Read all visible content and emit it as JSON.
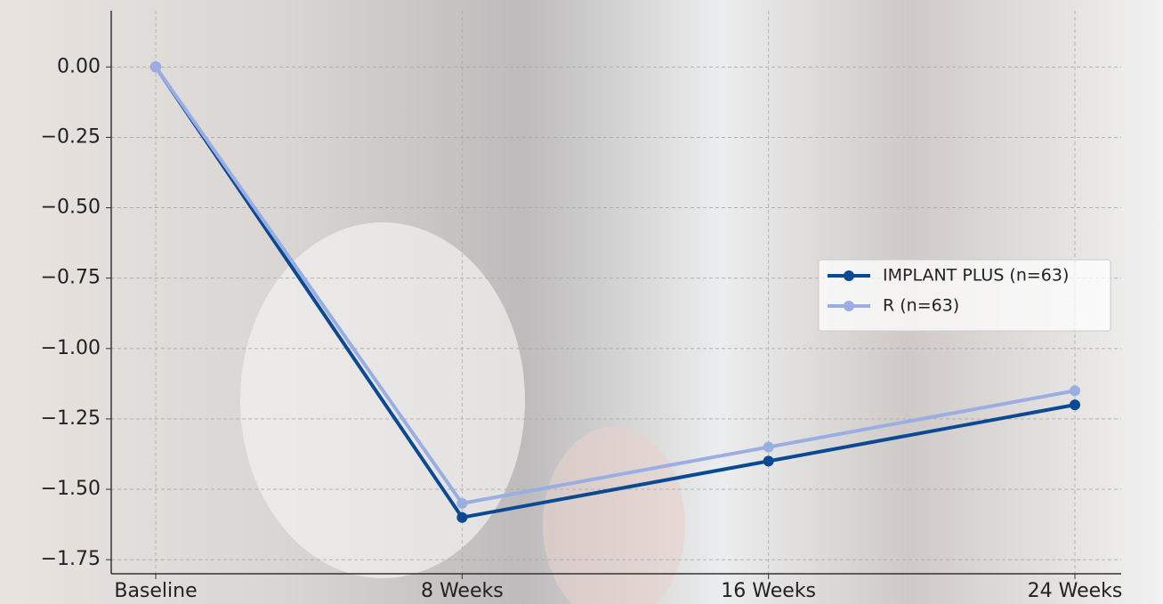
{
  "chart_data": {
    "type": "line",
    "categories": [
      "Baseline",
      "8 Weeks",
      "16 Weeks",
      "24 Weeks"
    ],
    "series": [
      {
        "name": "IMPLANT PLUS (n=63)",
        "color": "#0b4a92",
        "values": [
          0,
          -1.6,
          -1.4,
          -1.2
        ]
      },
      {
        "name": "R (n=63)",
        "color": "#9aaee2",
        "values": [
          0,
          -1.55,
          -1.35,
          -1.15
        ]
      }
    ],
    "ylim": [
      -1.8,
      0.2
    ],
    "yticks": [
      {
        "value": 0,
        "label": "0.00"
      },
      {
        "value": -0.25,
        "label": "−0.25"
      },
      {
        "value": -0.5,
        "label": "−0.50"
      },
      {
        "value": -0.75,
        "label": "−0.75"
      },
      {
        "value": -1,
        "label": "−1.00"
      },
      {
        "value": -1.25,
        "label": "−1.25"
      },
      {
        "value": -1.5,
        "label": "−1.50"
      },
      {
        "value": -1.75,
        "label": "−1.75"
      }
    ],
    "grid": true,
    "legend": "center right"
  }
}
